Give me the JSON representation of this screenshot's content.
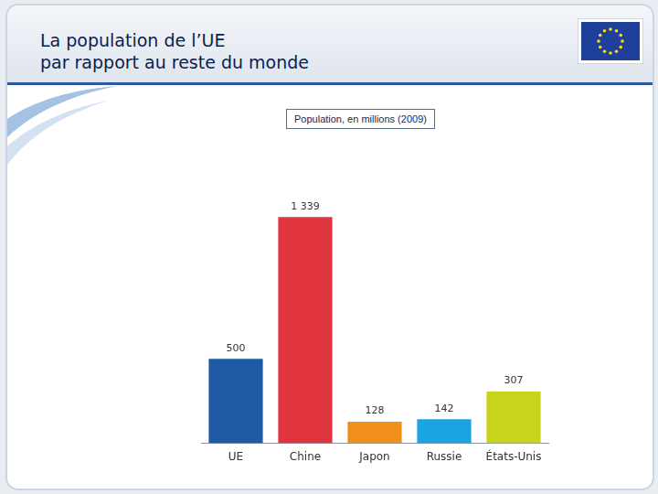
{
  "chart_data": {
    "type": "bar",
    "title": "La population de l’UE\npar rapport au reste du monde",
    "subtitle": "Population, en millions (2009)",
    "categories": [
      "UE",
      "Chine",
      "Japon",
      "Russie",
      "États-Unis"
    ],
    "values": [
      500,
      1339,
      128,
      142,
      307
    ],
    "value_labels": [
      "500",
      "1 339",
      "128",
      "142",
      "307"
    ],
    "colors": [
      "#1f5aa6",
      "#e0353f",
      "#f0901a",
      "#1ba3e3",
      "#c8d41c"
    ],
    "data_labels": true,
    "tick_labels": "x",
    "grid": false
  }
}
